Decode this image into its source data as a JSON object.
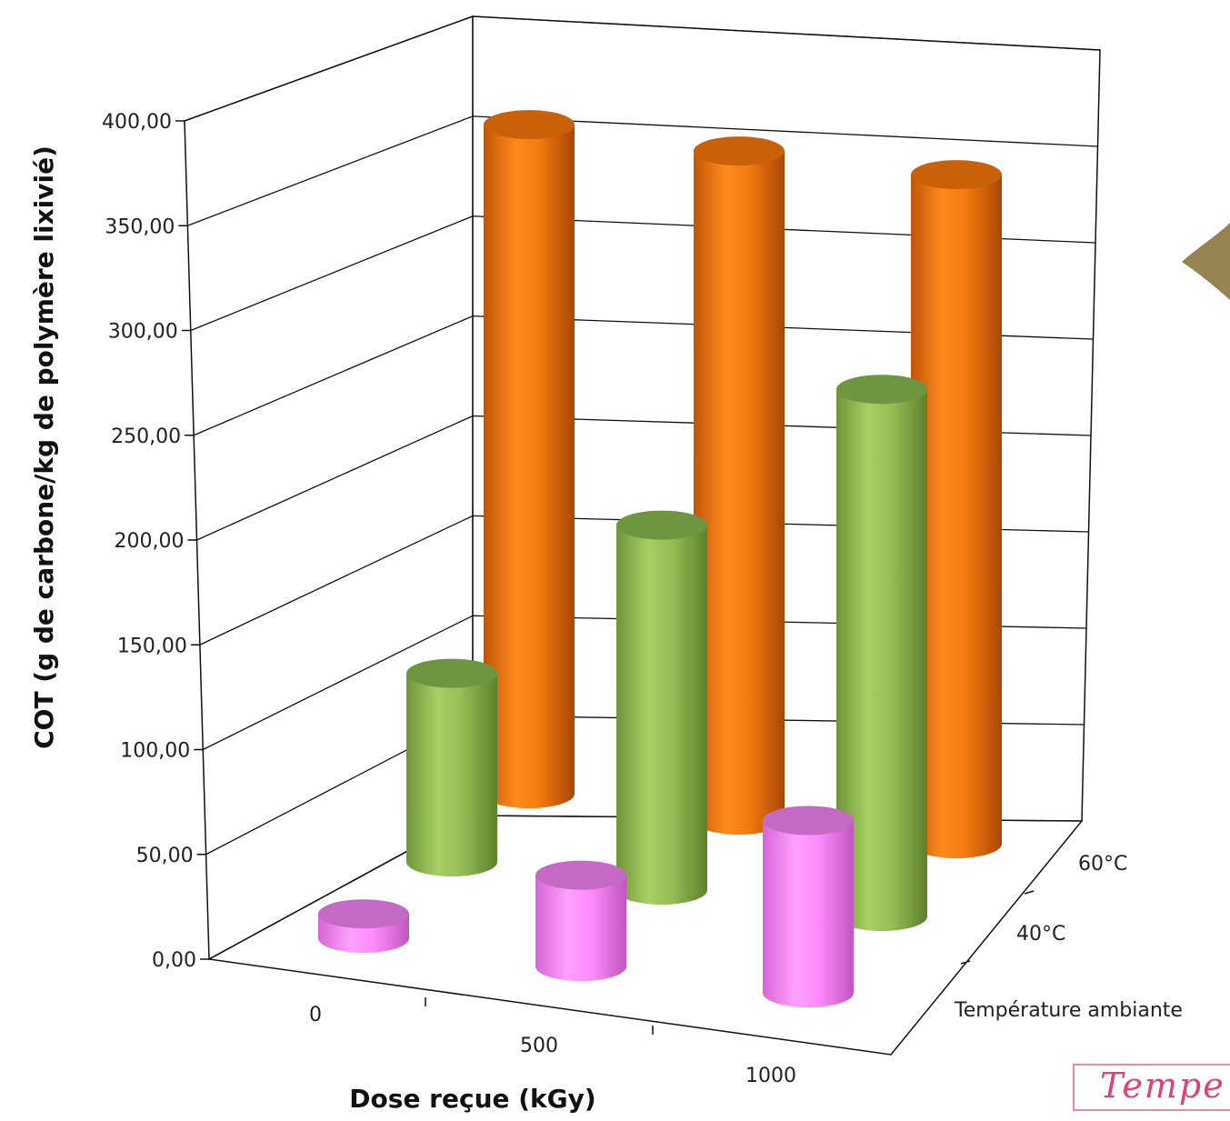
{
  "chart_data": {
    "type": "bar",
    "style": "3d-cylinder",
    "title": "",
    "ylabel": "COT (g de carbone/kg de polymère lixivié)",
    "xlabel": "Dose reçue (kGy)",
    "ylim": [
      0,
      400
    ],
    "yticks": [
      "0,00",
      "50,00",
      "100,00",
      "150,00",
      "200,00",
      "250,00",
      "300,00",
      "350,00",
      "400,00"
    ],
    "categories": [
      "0",
      "500",
      "1000"
    ],
    "depth_categories": [
      "Température ambiante",
      "40°C",
      "60°C"
    ],
    "series": [
      {
        "name": "Température ambiante",
        "color": "#ff80ff",
        "values": [
          12,
          45,
          85
        ]
      },
      {
        "name": "40°C",
        "color": "#9bc15a",
        "values": [
          93,
          180,
          260
        ]
      },
      {
        "name": "60°C",
        "color": "#f57b0e",
        "values": [
          330,
          330,
          330
        ]
      }
    ],
    "grid": true
  },
  "annotation": {
    "text": "Tempe"
  }
}
